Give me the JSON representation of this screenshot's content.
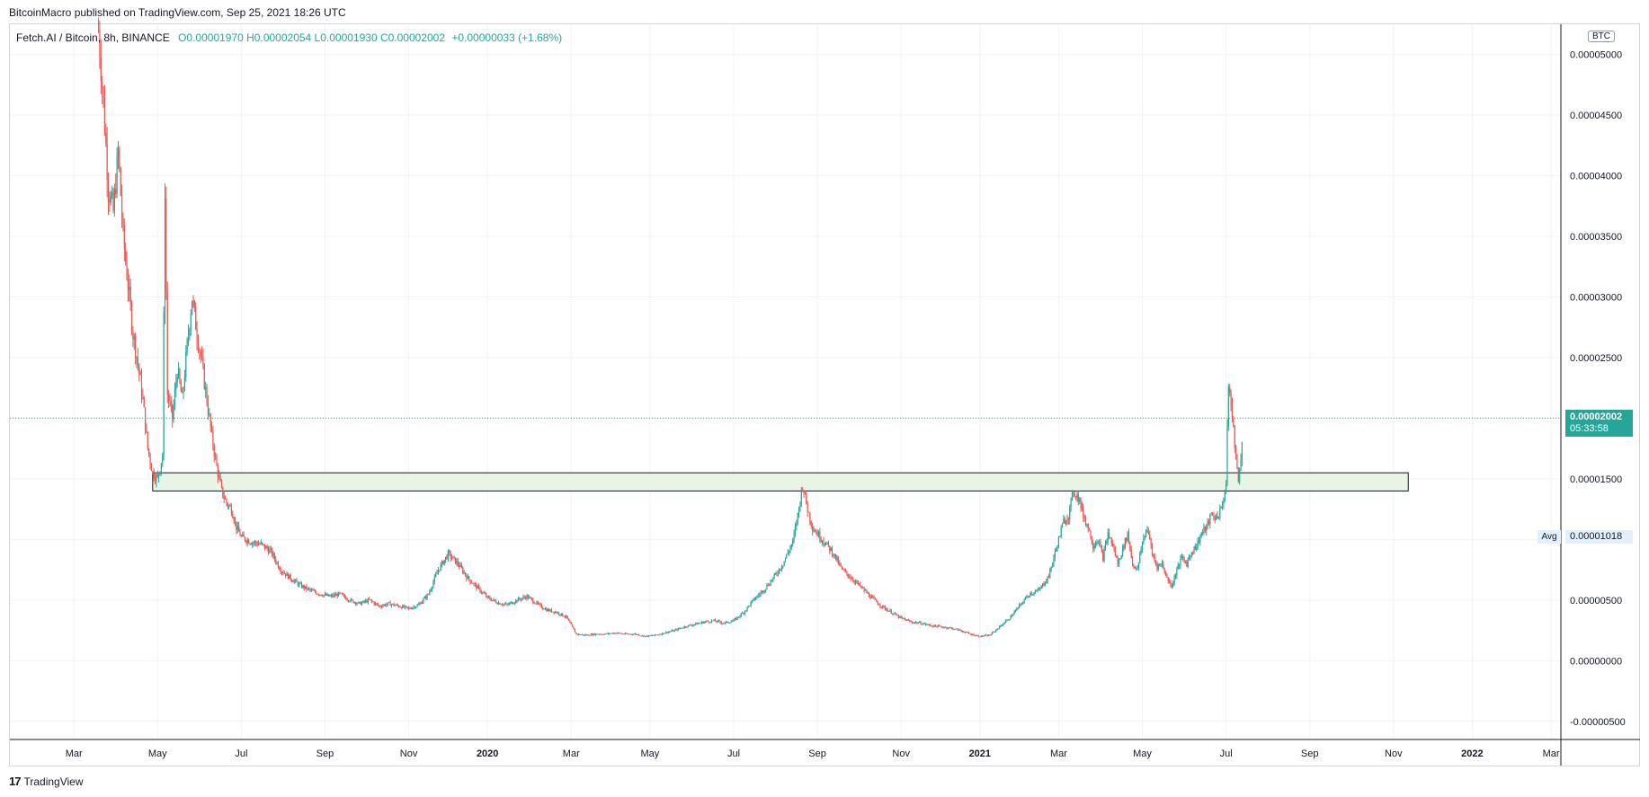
{
  "header": {
    "published": "BitcoinMacro published on TradingView.com, Sep 25, 2021 18:26 UTC"
  },
  "legend": {
    "symbol": "Fetch.AI / Bitcoin, 8h, BINANCE",
    "ohlc": "O0.00001970 H0.00002054 L0.00001930 C0.00002002",
    "change": "+0.00000033 (+1.68%)"
  },
  "axis": {
    "currency": "BTC",
    "current_price": "0.00002002",
    "countdown": "05:33:58",
    "avg_label": "Avg",
    "avg_value": "0.00001018"
  },
  "footer": {
    "logo": "17",
    "brand": "TradingView"
  },
  "colors": {
    "up": "#26a69a",
    "down": "#ef5350",
    "zone_fill": "#e8f5e4",
    "price_line": "#26a69a"
  },
  "chart_data": {
    "type": "candlestick",
    "ylim": [
      -6.5e-06,
      5.25e-05
    ],
    "y_ticks": [
      "0.00005000",
      "0.00004500",
      "0.00004000",
      "0.00003500",
      "0.00003000",
      "0.00002500",
      "0.00002000",
      "0.00001500",
      "0.00001018",
      "0.00000500",
      "0.00000000",
      "-0.00000500"
    ],
    "y_tick_values": [
      5e-05,
      4.5e-05,
      4e-05,
      3.5e-05,
      3e-05,
      2.5e-05,
      2e-05,
      1.5e-05,
      1e-05,
      5e-06,
      0,
      -5e-06
    ],
    "x_ticks": [
      {
        "label": "Mar",
        "t": 2019.16
      },
      {
        "label": "May",
        "t": 2019.33
      },
      {
        "label": "Jul",
        "t": 2019.5
      },
      {
        "label": "Sep",
        "t": 2019.67
      },
      {
        "label": "Nov",
        "t": 2019.84
      },
      {
        "label": "2020",
        "t": 2020.0,
        "bold": true
      },
      {
        "label": "Mar",
        "t": 2020.17
      },
      {
        "label": "May",
        "t": 2020.33
      },
      {
        "label": "Jul",
        "t": 2020.5
      },
      {
        "label": "Sep",
        "t": 2020.67
      },
      {
        "label": "Nov",
        "t": 2020.84
      },
      {
        "label": "2021",
        "t": 2021.0,
        "bold": true
      },
      {
        "label": "Mar",
        "t": 2021.16
      },
      {
        "label": "May",
        "t": 2021.33
      },
      {
        "label": "Jul",
        "t": 2021.5
      },
      {
        "label": "Sep",
        "t": 2021.67
      },
      {
        "label": "Nov",
        "t": 2021.84
      },
      {
        "label": "2022",
        "t": 2022.0,
        "bold": true
      },
      {
        "label": "Mar",
        "t": 2022.16
      }
    ],
    "xlim": [
      2019.03,
      2022.18
    ],
    "zone": {
      "t0": 2019.32,
      "t1": 2021.87,
      "y0": 1.4e-05,
      "y1": 1.55e-05
    },
    "current_price": 2.002e-05,
    "series_close": [
      [
        2019.21,
        5.2e-05
      ],
      [
        2019.22,
        4.6e-05
      ],
      [
        2019.23,
        3.9e-05
      ],
      [
        2019.24,
        3.7e-05
      ],
      [
        2019.25,
        4.2e-05
      ],
      [
        2019.26,
        3.5e-05
      ],
      [
        2019.27,
        3.1e-05
      ],
      [
        2019.28,
        2.7e-05
      ],
      [
        2019.29,
        2.45e-05
      ],
      [
        2019.3,
        2.15e-05
      ],
      [
        2019.31,
        1.75e-05
      ],
      [
        2019.32,
        1.55e-05
      ],
      [
        2019.33,
        1.5e-05
      ],
      [
        2019.34,
        1.7e-05
      ],
      [
        2019.345,
        3.9e-05
      ],
      [
        2019.35,
        2.2e-05
      ],
      [
        2019.36,
        2e-05
      ],
      [
        2019.37,
        2.4e-05
      ],
      [
        2019.38,
        2.15e-05
      ],
      [
        2019.39,
        2.6e-05
      ],
      [
        2019.4,
        3e-05
      ],
      [
        2019.41,
        2.7e-05
      ],
      [
        2019.42,
        2.45e-05
      ],
      [
        2019.43,
        2.15e-05
      ],
      [
        2019.44,
        1.85e-05
      ],
      [
        2019.45,
        1.6e-05
      ],
      [
        2019.46,
        1.4e-05
      ],
      [
        2019.47,
        1.3e-05
      ],
      [
        2019.48,
        1.25e-05
      ],
      [
        2019.49,
        1.1e-05
      ],
      [
        2019.5,
        1.02e-05
      ],
      [
        2019.52,
        9.8e-06
      ],
      [
        2019.54,
        9.6e-06
      ],
      [
        2019.56,
        9e-06
      ],
      [
        2019.58,
        7.5e-06
      ],
      [
        2019.6,
        6.8e-06
      ],
      [
        2019.62,
        6.2e-06
      ],
      [
        2019.64,
        5.8e-06
      ],
      [
        2019.66,
        5.5e-06
      ],
      [
        2019.68,
        5.3e-06
      ],
      [
        2019.7,
        5.5e-06
      ],
      [
        2019.72,
        5e-06
      ],
      [
        2019.74,
        4.7e-06
      ],
      [
        2019.76,
        5e-06
      ],
      [
        2019.78,
        4.5e-06
      ],
      [
        2019.8,
        4.7e-06
      ],
      [
        2019.82,
        4.5e-06
      ],
      [
        2019.84,
        4.3e-06
      ],
      [
        2019.86,
        4.6e-06
      ],
      [
        2019.88,
        5.5e-06
      ],
      [
        2019.9,
        7.5e-06
      ],
      [
        2019.92,
        8.8e-06
      ],
      [
        2019.94,
        8e-06
      ],
      [
        2019.96,
        6.8e-06
      ],
      [
        2019.98,
        6e-06
      ],
      [
        2020.0,
        5.2e-06
      ],
      [
        2020.02,
        4.8e-06
      ],
      [
        2020.04,
        4.6e-06
      ],
      [
        2020.06,
        5e-06
      ],
      [
        2020.08,
        5.3e-06
      ],
      [
        2020.1,
        4.7e-06
      ],
      [
        2020.12,
        4.2e-06
      ],
      [
        2020.14,
        4e-06
      ],
      [
        2020.16,
        3.6e-06
      ],
      [
        2020.18,
        2.2e-06
      ],
      [
        2020.2,
        2.1e-06
      ],
      [
        2020.22,
        2.2e-06
      ],
      [
        2020.24,
        2.2e-06
      ],
      [
        2020.26,
        2.3e-06
      ],
      [
        2020.28,
        2.2e-06
      ],
      [
        2020.3,
        2.2e-06
      ],
      [
        2020.32,
        2e-06
      ],
      [
        2020.34,
        2.1e-06
      ],
      [
        2020.36,
        2.3e-06
      ],
      [
        2020.38,
        2.5e-06
      ],
      [
        2020.4,
        2.8e-06
      ],
      [
        2020.42,
        3e-06
      ],
      [
        2020.44,
        3.2e-06
      ],
      [
        2020.46,
        3.3e-06
      ],
      [
        2020.48,
        3.1e-06
      ],
      [
        2020.5,
        3.3e-06
      ],
      [
        2020.52,
        4e-06
      ],
      [
        2020.54,
        5e-06
      ],
      [
        2020.56,
        5.8e-06
      ],
      [
        2020.58,
        6.8e-06
      ],
      [
        2020.6,
        8e-06
      ],
      [
        2020.62,
        9.8e-06
      ],
      [
        2020.63,
        1.2e-05
      ],
      [
        2020.64,
        1.45e-05
      ],
      [
        2020.65,
        1.25e-05
      ],
      [
        2020.66,
        1.1e-05
      ],
      [
        2020.68,
        1e-05
      ],
      [
        2020.7,
        9e-06
      ],
      [
        2020.72,
        7.5e-06
      ],
      [
        2020.74,
        6.8e-06
      ],
      [
        2020.76,
        6e-06
      ],
      [
        2020.78,
        5.2e-06
      ],
      [
        2020.8,
        4.5e-06
      ],
      [
        2020.82,
        4e-06
      ],
      [
        2020.84,
        3.5e-06
      ],
      [
        2020.86,
        3.2e-06
      ],
      [
        2020.88,
        3.1e-06
      ],
      [
        2020.9,
        2.9e-06
      ],
      [
        2020.92,
        2.8e-06
      ],
      [
        2020.94,
        2.7e-06
      ],
      [
        2020.96,
        2.5e-06
      ],
      [
        2020.98,
        2.2e-06
      ],
      [
        2021.0,
        2e-06
      ],
      [
        2021.02,
        2.1e-06
      ],
      [
        2021.04,
        2.8e-06
      ],
      [
        2021.06,
        3.5e-06
      ],
      [
        2021.08,
        4.5e-06
      ],
      [
        2021.1,
        5.5e-06
      ],
      [
        2021.12,
        5.8e-06
      ],
      [
        2021.14,
        7e-06
      ],
      [
        2021.15,
        8.5e-06
      ],
      [
        2021.16,
        1e-05
      ],
      [
        2021.17,
        1.15e-05
      ],
      [
        2021.18,
        1.2e-05
      ],
      [
        2021.19,
        1.4e-05
      ],
      [
        2021.2,
        1.35e-05
      ],
      [
        2021.21,
        1.2e-05
      ],
      [
        2021.22,
        1.1e-05
      ],
      [
        2021.23,
        9.5e-06
      ],
      [
        2021.24,
        1e-05
      ],
      [
        2021.25,
        8.5e-06
      ],
      [
        2021.26,
        1.05e-05
      ],
      [
        2021.27,
        9.5e-06
      ],
      [
        2021.28,
        8e-06
      ],
      [
        2021.29,
        9.2e-06
      ],
      [
        2021.3,
        1.05e-05
      ],
      [
        2021.31,
        8e-06
      ],
      [
        2021.32,
        7.5e-06
      ],
      [
        2021.33,
        9.8e-06
      ],
      [
        2021.34,
        1.1e-05
      ],
      [
        2021.35,
        8.8e-06
      ],
      [
        2021.36,
        7.8e-06
      ],
      [
        2021.37,
        8e-06
      ],
      [
        2021.38,
        6.8e-06
      ],
      [
        2021.39,
        6.2e-06
      ],
      [
        2021.4,
        7.5e-06
      ],
      [
        2021.41,
        8.5e-06
      ],
      [
        2021.42,
        8e-06
      ],
      [
        2021.43,
        9e-06
      ],
      [
        2021.44,
        9.5e-06
      ],
      [
        2021.45,
        1.05e-05
      ],
      [
        2021.46,
        1.1e-05
      ],
      [
        2021.47,
        1.2e-05
      ],
      [
        2021.48,
        1.18e-05
      ],
      [
        2021.49,
        1.25e-05
      ],
      [
        2021.5,
        1.45e-05
      ],
      [
        2021.505,
        2.3e-05
      ],
      [
        2021.51,
        2.1e-05
      ],
      [
        2021.515,
        1.9e-05
      ],
      [
        2021.52,
        1.7e-05
      ],
      [
        2021.525,
        1.45e-05
      ],
      [
        2021.53,
        1.7e-05
      ],
      [
        2021.535,
        2e-05
      ]
    ]
  }
}
